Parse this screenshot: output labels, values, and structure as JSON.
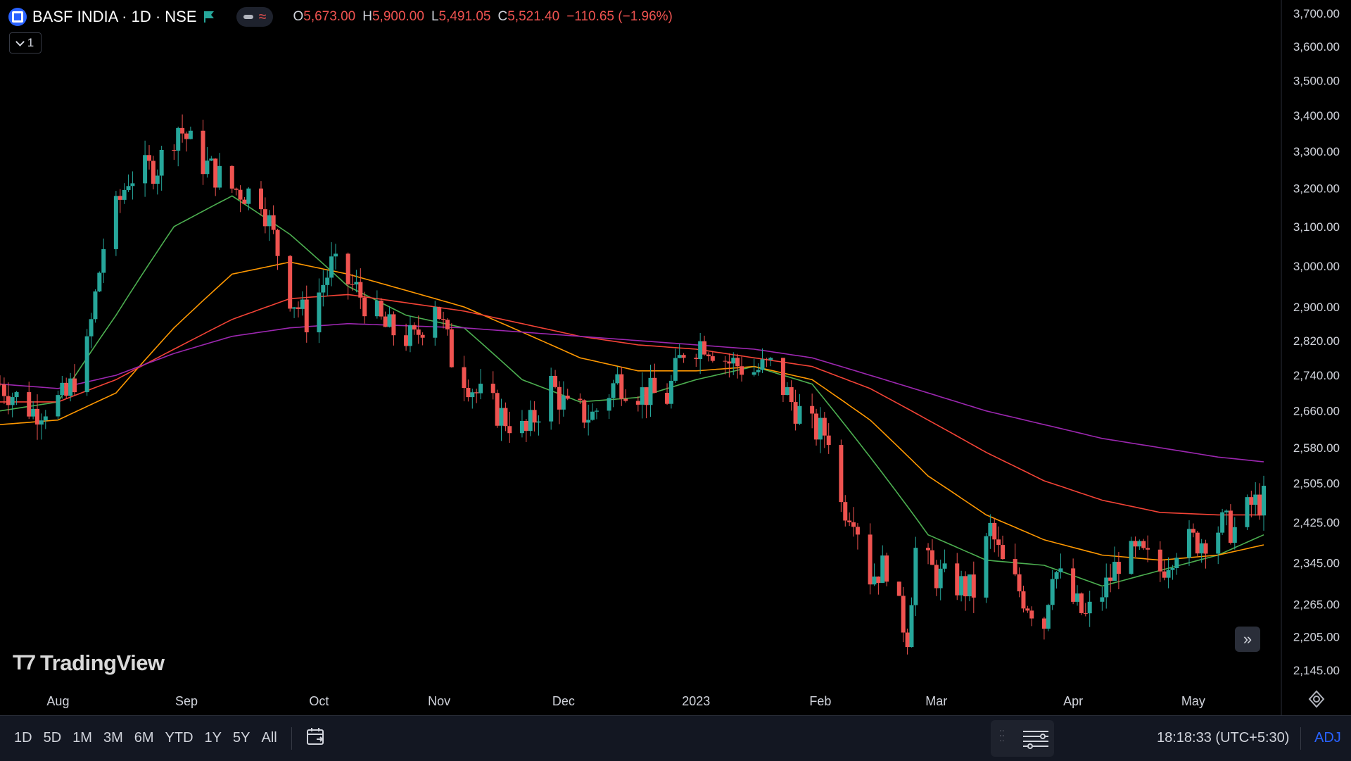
{
  "header": {
    "symbol_title": "BASF INDIA · 1D · NSE",
    "ohlc": {
      "open_label": "O",
      "open": "5,673.00",
      "high_label": "H",
      "high": "5,900.00",
      "low_label": "L",
      "low": "5,491.05",
      "close_label": "C",
      "close": "5,521.40",
      "change": "−110.65 (−1.96%)"
    },
    "collapse_count": "1"
  },
  "watermark": "TradingView",
  "bottom_bar": {
    "ranges": [
      "1D",
      "5D",
      "1M",
      "3M",
      "6M",
      "YTD",
      "1Y",
      "5Y",
      "All"
    ],
    "clock": "18:18:33 (UTC+5:30)",
    "adj_label": "ADJ"
  },
  "colors": {
    "up": "#26a69a",
    "down": "#ef5350",
    "background": "#000000",
    "accent": "#2962ff"
  },
  "icons": [
    "symbol-logo-icon",
    "flag-icon",
    "eye-toggle-icon",
    "chevron-down-icon",
    "tradingview-logo-icon",
    "scroll-right-icon",
    "calendar-icon",
    "drag-handle-icon",
    "lines-icon",
    "settings-icon"
  ],
  "chart_data": {
    "type": "candlestick",
    "y_axis": {
      "scale": "log",
      "ylim": [
        2110,
        3720
      ],
      "ticks": [
        3700,
        3600,
        3500,
        3400,
        3300,
        3200,
        3100,
        3000,
        2900,
        2820,
        2740,
        2660,
        2580,
        2505,
        2425,
        2345,
        2265,
        2205,
        2145
      ],
      "tick_labels": [
        "3,700.00",
        "3,600.00",
        "3,500.00",
        "3,400.00",
        "3,300.00",
        "3,200.00",
        "3,100.00",
        "3,000.00",
        "2,900.00",
        "2,820.00",
        "2,740.00",
        "2,660.00",
        "2,580.00",
        "2,505.00",
        "2,425.00",
        "2,345.00",
        "2,265.00",
        "2,205.00",
        "2,145.00"
      ]
    },
    "x_axis": {
      "range": [
        "2022-07-18",
        "2023-05-19"
      ],
      "ticks": [
        {
          "label": "Aug",
          "date": "2022-08-01"
        },
        {
          "label": "Sep",
          "date": "2022-09-01"
        },
        {
          "label": "Oct",
          "date": "2022-10-03"
        },
        {
          "label": "Nov",
          "date": "2022-11-01"
        },
        {
          "label": "Dec",
          "date": "2022-12-01"
        },
        {
          "label": "2023",
          "date": "2023-01-02"
        },
        {
          "label": "Feb",
          "date": "2023-02-01"
        },
        {
          "label": "Mar",
          "date": "2023-03-01"
        },
        {
          "label": "Apr",
          "date": "2023-04-03"
        },
        {
          "label": "May",
          "date": "2023-05-02"
        }
      ]
    },
    "price_anchors": [
      [
        "2022-07-18",
        2720
      ],
      [
        "2022-07-26",
        2660
      ],
      [
        "2022-08-03",
        2690
      ],
      [
        "2022-08-08",
        2800
      ],
      [
        "2022-08-12",
        3050
      ],
      [
        "2022-08-18",
        3230
      ],
      [
        "2022-08-25",
        3260
      ],
      [
        "2022-08-30",
        3370
      ],
      [
        "2022-09-05",
        3270
      ],
      [
        "2022-09-12",
        3200
      ],
      [
        "2022-09-19",
        3180
      ],
      [
        "2022-09-26",
        2930
      ],
      [
        "2022-09-30",
        2870
      ],
      [
        "2022-10-06",
        3000
      ],
      [
        "2022-10-12",
        2940
      ],
      [
        "2022-10-19",
        2850
      ],
      [
        "2022-10-26",
        2820
      ],
      [
        "2022-10-31",
        2920
      ],
      [
        "2022-11-04",
        2780
      ],
      [
        "2022-11-10",
        2700
      ],
      [
        "2022-11-16",
        2650
      ],
      [
        "2022-11-22",
        2610
      ],
      [
        "2022-11-28",
        2720
      ],
      [
        "2022-12-02",
        2660
      ],
      [
        "2022-12-08",
        2650
      ],
      [
        "2022-12-14",
        2730
      ],
      [
        "2022-12-20",
        2700
      ],
      [
        "2022-12-26",
        2690
      ],
      [
        "2022-12-30",
        2800
      ],
      [
        "2023-01-04",
        2820
      ],
      [
        "2023-01-10",
        2770
      ],
      [
        "2023-01-16",
        2750
      ],
      [
        "2023-01-20",
        2760
      ],
      [
        "2023-01-25",
        2680
      ],
      [
        "2023-01-30",
        2620
      ],
      [
        "2023-02-03",
        2610
      ],
      [
        "2023-02-06",
        2460
      ],
      [
        "2023-02-09",
        2450
      ],
      [
        "2023-02-13",
        2320
      ],
      [
        "2023-02-17",
        2340
      ],
      [
        "2023-02-20",
        2250
      ],
      [
        "2023-02-22",
        2210
      ],
      [
        "2023-02-24",
        2370
      ],
      [
        "2023-03-01",
        2320
      ],
      [
        "2023-03-07",
        2300
      ],
      [
        "2023-03-10",
        2290
      ],
      [
        "2023-03-14",
        2410
      ],
      [
        "2023-03-17",
        2340
      ],
      [
        "2023-03-22",
        2280
      ],
      [
        "2023-03-27",
        2230
      ],
      [
        "2023-03-29",
        2340
      ],
      [
        "2023-04-03",
        2270
      ],
      [
        "2023-04-06",
        2240
      ],
      [
        "2023-04-11",
        2300
      ],
      [
        "2023-04-14",
        2350
      ],
      [
        "2023-04-19",
        2360
      ],
      [
        "2023-04-24",
        2330
      ],
      [
        "2023-04-28",
        2380
      ],
      [
        "2023-05-04",
        2390
      ],
      [
        "2023-05-09",
        2420
      ],
      [
        "2023-05-12",
        2410
      ],
      [
        "2023-05-16",
        2460
      ],
      [
        "2023-05-19",
        2470
      ]
    ],
    "moving_averages": [
      {
        "color": "#4caf50",
        "anchors": [
          [
            "2022-07-18",
            2660
          ],
          [
            "2022-08-01",
            2680
          ],
          [
            "2022-08-15",
            2880
          ],
          [
            "2022-08-29",
            3100
          ],
          [
            "2022-09-12",
            3180
          ],
          [
            "2022-09-26",
            3080
          ],
          [
            "2022-10-10",
            2950
          ],
          [
            "2022-10-24",
            2880
          ],
          [
            "2022-11-07",
            2850
          ],
          [
            "2022-11-21",
            2730
          ],
          [
            "2022-12-05",
            2680
          ],
          [
            "2022-12-19",
            2690
          ],
          [
            "2023-01-02",
            2730
          ],
          [
            "2023-01-16",
            2760
          ],
          [
            "2023-01-30",
            2720
          ],
          [
            "2023-02-13",
            2560
          ],
          [
            "2023-02-27",
            2400
          ],
          [
            "2023-03-13",
            2350
          ],
          [
            "2023-03-27",
            2340
          ],
          [
            "2023-04-10",
            2300
          ],
          [
            "2023-04-24",
            2330
          ],
          [
            "2023-05-08",
            2360
          ],
          [
            "2023-05-19",
            2400
          ]
        ]
      },
      {
        "color": "#ff9800",
        "anchors": [
          [
            "2022-07-18",
            2630
          ],
          [
            "2022-08-01",
            2640
          ],
          [
            "2022-08-15",
            2700
          ],
          [
            "2022-08-29",
            2850
          ],
          [
            "2022-09-12",
            2980
          ],
          [
            "2022-09-26",
            3010
          ],
          [
            "2022-10-10",
            2980
          ],
          [
            "2022-10-24",
            2940
          ],
          [
            "2022-11-07",
            2900
          ],
          [
            "2022-11-21",
            2840
          ],
          [
            "2022-12-05",
            2780
          ],
          [
            "2022-12-19",
            2750
          ],
          [
            "2023-01-02",
            2750
          ],
          [
            "2023-01-16",
            2760
          ],
          [
            "2023-01-30",
            2730
          ],
          [
            "2023-02-13",
            2640
          ],
          [
            "2023-02-27",
            2520
          ],
          [
            "2023-03-13",
            2440
          ],
          [
            "2023-03-27",
            2390
          ],
          [
            "2023-04-10",
            2360
          ],
          [
            "2023-04-24",
            2350
          ],
          [
            "2023-05-08",
            2360
          ],
          [
            "2023-05-19",
            2380
          ]
        ]
      },
      {
        "color": "#f44336",
        "anchors": [
          [
            "2022-07-18",
            2680
          ],
          [
            "2022-08-01",
            2680
          ],
          [
            "2022-08-15",
            2730
          ],
          [
            "2022-08-29",
            2800
          ],
          [
            "2022-09-12",
            2870
          ],
          [
            "2022-09-26",
            2920
          ],
          [
            "2022-10-10",
            2930
          ],
          [
            "2022-10-24",
            2910
          ],
          [
            "2022-11-07",
            2890
          ],
          [
            "2022-11-21",
            2860
          ],
          [
            "2022-12-05",
            2830
          ],
          [
            "2022-12-19",
            2810
          ],
          [
            "2023-01-02",
            2800
          ],
          [
            "2023-01-16",
            2780
          ],
          [
            "2023-01-30",
            2760
          ],
          [
            "2023-02-13",
            2710
          ],
          [
            "2023-02-27",
            2640
          ],
          [
            "2023-03-13",
            2570
          ],
          [
            "2023-03-27",
            2510
          ],
          [
            "2023-04-10",
            2470
          ],
          [
            "2023-04-24",
            2445
          ],
          [
            "2023-05-08",
            2440
          ],
          [
            "2023-05-19",
            2440
          ]
        ]
      },
      {
        "color": "#9c27b0",
        "anchors": [
          [
            "2022-07-18",
            2720
          ],
          [
            "2022-08-01",
            2710
          ],
          [
            "2022-08-15",
            2740
          ],
          [
            "2022-08-29",
            2790
          ],
          [
            "2022-09-12",
            2830
          ],
          [
            "2022-09-26",
            2850
          ],
          [
            "2022-10-10",
            2860
          ],
          [
            "2022-10-24",
            2855
          ],
          [
            "2022-11-07",
            2850
          ],
          [
            "2022-11-21",
            2840
          ],
          [
            "2022-12-05",
            2830
          ],
          [
            "2022-12-19",
            2820
          ],
          [
            "2023-01-02",
            2810
          ],
          [
            "2023-01-16",
            2800
          ],
          [
            "2023-01-30",
            2780
          ],
          [
            "2023-02-13",
            2740
          ],
          [
            "2023-02-27",
            2700
          ],
          [
            "2023-03-13",
            2660
          ],
          [
            "2023-03-27",
            2630
          ],
          [
            "2023-04-10",
            2600
          ],
          [
            "2023-04-24",
            2580
          ],
          [
            "2023-05-08",
            2560
          ],
          [
            "2023-05-19",
            2550
          ]
        ]
      }
    ]
  }
}
